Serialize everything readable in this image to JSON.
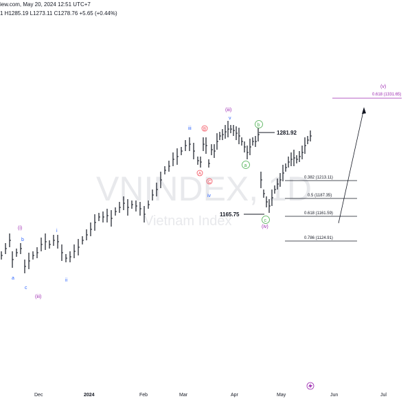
{
  "header": {
    "line1": "iew.com, May 20, 2024 12:51 UTC+7",
    "line2": "1  H1285.19  L1273.11  C1278.76  +5.65 (+0.44%)"
  },
  "watermark": {
    "symbol": "VNINDEX, 1D",
    "name": "Vietnam Index"
  },
  "x_axis": [
    "Dec",
    "2024",
    "Feb",
    "Mar",
    "Apr",
    "May",
    "Jun",
    "Jul"
  ],
  "price_labels": {
    "high_b": "1281.92",
    "low_c": "1165.75"
  },
  "fib_levels": [
    {
      "label": "0.382 (1213.11)"
    },
    {
      "label": "0.5 (1187.35)"
    },
    {
      "label": "0.618 (1161.59)"
    },
    {
      "label": "0.786 (1124.91)"
    }
  ],
  "target": {
    "wave": "(v)",
    "label": "0.618 (1331.65)"
  },
  "waves": {
    "i_paren": "(i)",
    "b": "b",
    "a": "a",
    "c": "c",
    "iii_paren_bottom": "(iii)",
    "i": "i",
    "ii": "ii",
    "iii": "iii",
    "B_circ": "B",
    "A_circ": "A",
    "C_circ": "C",
    "iv": "iv",
    "iii_paren_top": "(iii)",
    "v": "v",
    "b_circ": "b",
    "a_circ": "a",
    "c_circ": "c",
    "iv_paren": "(iv)"
  },
  "colors": {
    "candle": "#131722",
    "blue": "#2962ff",
    "purple": "#9c27b0",
    "red": "#f23645",
    "green": "#4caf50",
    "fib": "#131722",
    "watermark": "#e8e9ec"
  },
  "icons": {
    "lightning": "lightning-icon"
  }
}
